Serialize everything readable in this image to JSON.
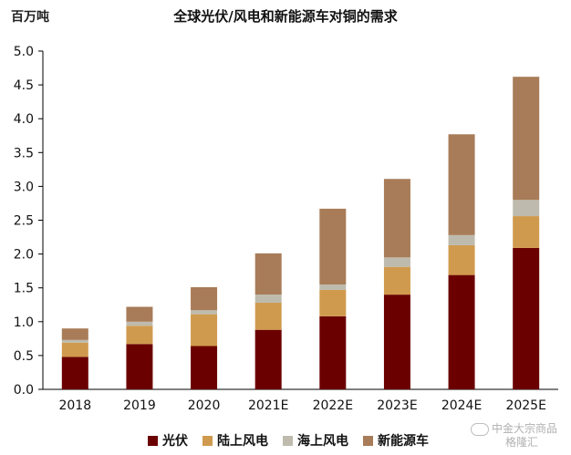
{
  "header": {
    "unit_label": "百万吨",
    "title": "全球光伏/风电和新能源车对铜的需求"
  },
  "watermark": {
    "line1": "中金大宗商品",
    "line2": "格隆汇"
  },
  "chart_data": {
    "type": "bar",
    "stacked": true,
    "title": "全球光伏/风电和新能源车对铜的需求",
    "ylabel": "百万吨",
    "ylim": [
      0,
      5.0
    ],
    "yticks": [
      "0.0",
      "0.5",
      "1.0",
      "1.5",
      "2.0",
      "2.5",
      "3.0",
      "3.5",
      "4.0",
      "4.5",
      "5.0"
    ],
    "categories": [
      "2018",
      "2019",
      "2020",
      "2021E",
      "2022E",
      "2023E",
      "2024E",
      "2025E"
    ],
    "series": [
      {
        "name": "光伏",
        "color": "#6b0000",
        "values": [
          0.48,
          0.67,
          0.64,
          0.88,
          1.08,
          1.4,
          1.69,
          2.09
        ]
      },
      {
        "name": "陆上风电",
        "color": "#d09a4e",
        "values": [
          0.21,
          0.27,
          0.47,
          0.4,
          0.39,
          0.41,
          0.44,
          0.47
        ]
      },
      {
        "name": "海上风电",
        "color": "#bebbae",
        "values": [
          0.04,
          0.06,
          0.06,
          0.12,
          0.08,
          0.14,
          0.15,
          0.24
        ]
      },
      {
        "name": "新能源车",
        "color": "#a87c58",
        "values": [
          0.17,
          0.22,
          0.34,
          0.61,
          1.12,
          1.16,
          1.49,
          1.82
        ]
      }
    ],
    "grid": false,
    "legend_position": "bottom"
  }
}
